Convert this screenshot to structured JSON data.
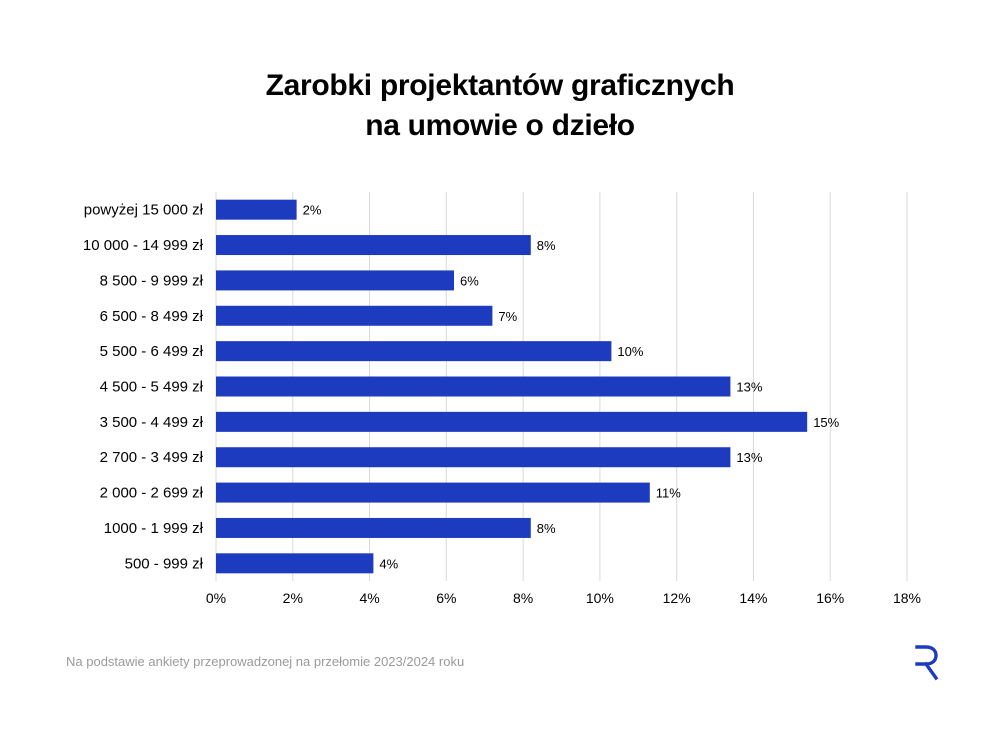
{
  "title_line1": "Zarobki projektantów graficznych",
  "title_line2": "na umowie o dzieło",
  "footnote": "Na podstawie ankiety przeprowadzonej na przełomie 2023/2024 roku",
  "logo_icon": "r-logo-icon",
  "colors": {
    "bar": "#1d3bbf",
    "grid": "#d9d9d9",
    "logo": "#1d3bbf"
  },
  "chart_data": {
    "type": "bar",
    "orientation": "horizontal",
    "categories": [
      "powyżej 15 000 zł",
      "10 000 - 14 999 zł",
      "8 500 - 9 999 zł",
      "6 500 - 8 499 zł",
      "5 500 - 6 499 zł",
      "4 500 - 5 499 zł",
      "3 500 - 4 499 zł",
      "2 700 - 3 499 zł",
      "2 000 - 2 699 zł",
      "1000 - 1 999 zł",
      "500 - 999 zł"
    ],
    "values": [
      2.1,
      8.2,
      6.2,
      7.2,
      10.3,
      13.4,
      15.4,
      13.4,
      11.3,
      8.2,
      4.1
    ],
    "data_labels": [
      "2%",
      "8%",
      "6%",
      "7%",
      "10%",
      "13%",
      "15%",
      "13%",
      "11%",
      "8%",
      "4%"
    ],
    "x_ticks": [
      0,
      2,
      4,
      6,
      8,
      10,
      12,
      14,
      16,
      18
    ],
    "x_tick_labels": [
      "0%",
      "2%",
      "4%",
      "6%",
      "8%",
      "10%",
      "12%",
      "14%",
      "16%",
      "18%"
    ],
    "xlim": [
      0,
      18
    ],
    "grid": true,
    "legend": "none"
  }
}
